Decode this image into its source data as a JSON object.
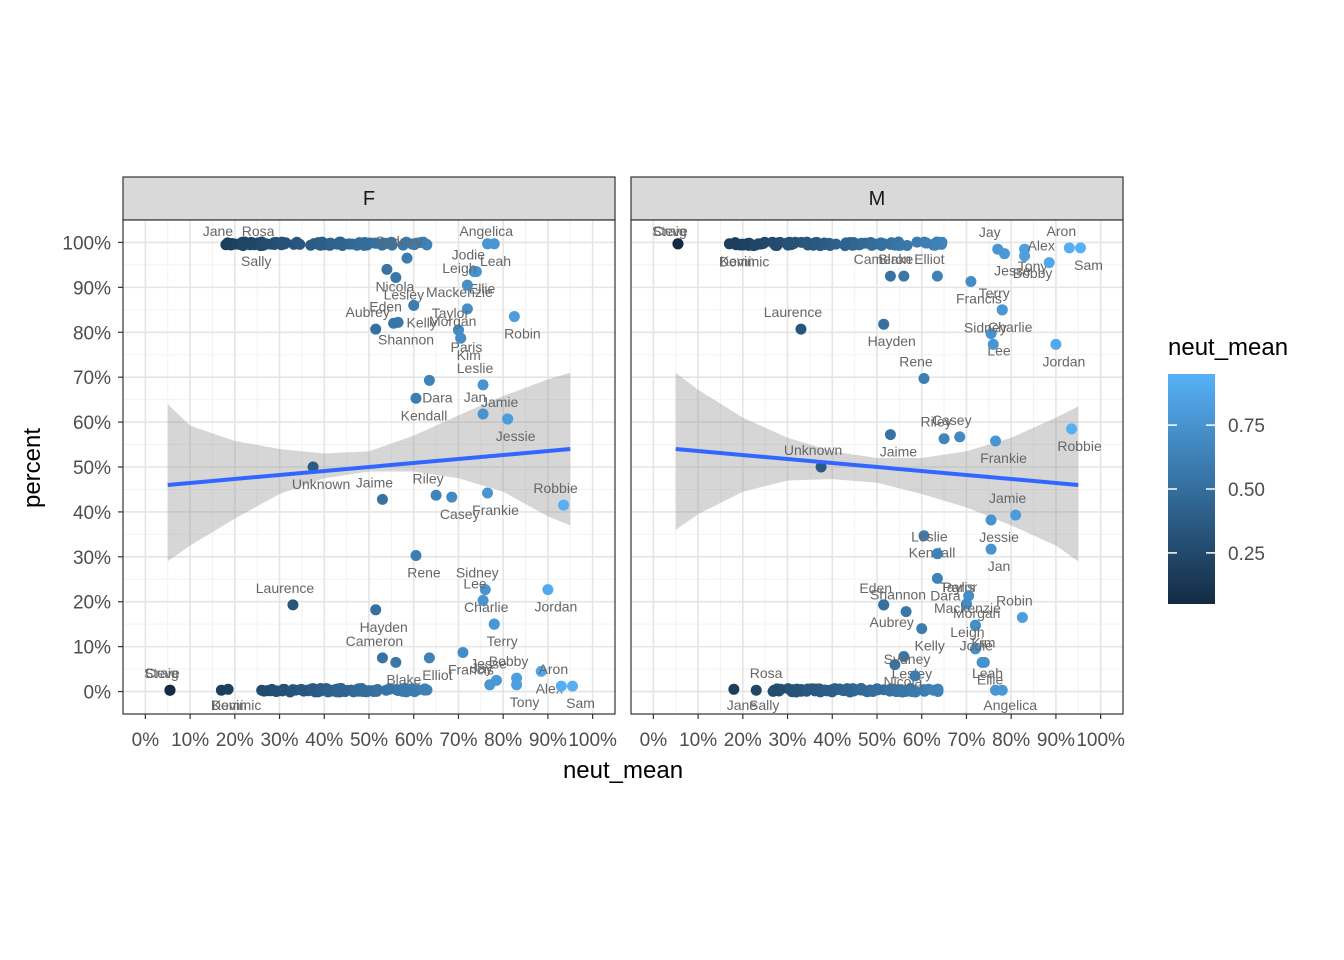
{
  "chart_data": {
    "type": "scatter",
    "xlabel": "neut_mean",
    "ylabel": "percent",
    "xlim": [
      0,
      1
    ],
    "ylim": [
      0,
      1
    ],
    "x_ticks": [
      "0%",
      "10%",
      "20%",
      "30%",
      "40%",
      "50%",
      "60%",
      "70%",
      "80%",
      "90%",
      "100%"
    ],
    "y_ticks": [
      "0%",
      "10%",
      "20%",
      "30%",
      "40%",
      "50%",
      "60%",
      "70%",
      "80%",
      "90%",
      "100%"
    ],
    "grid": true,
    "trend_line": {
      "method": "linear",
      "color": "#3366ff",
      "confidence_band": true
    },
    "legend": {
      "title": "neut_mean",
      "placement": "right",
      "type": "colorbar",
      "breaks": [
        "0.25",
        "0.50",
        "0.75"
      ],
      "colors": {
        "low": "#132b43",
        "high": "#56b1f7"
      }
    },
    "facets": [
      {
        "label": "F",
        "trend": {
          "y_at_xmin": 0.46,
          "y_at_xmax": 0.54,
          "x_range": [
            0.05,
            0.95
          ]
        },
        "band": [
          [
            0.05,
            0.29,
            0.64
          ],
          [
            0.1,
            0.325,
            0.592
          ],
          [
            0.2,
            0.385,
            0.558
          ],
          [
            0.3,
            0.44,
            0.54
          ],
          [
            0.4,
            0.475,
            0.53
          ],
          [
            0.5,
            0.49,
            0.535
          ],
          [
            0.6,
            0.49,
            0.57
          ],
          [
            0.7,
            0.475,
            0.615
          ],
          [
            0.8,
            0.445,
            0.658
          ],
          [
            0.9,
            0.39,
            0.695
          ],
          [
            0.95,
            0.37,
            0.71
          ]
        ],
        "labeled_points": [
          {
            "name": "Jane",
            "x": 0.18,
            "y": 0.995
          },
          {
            "name": "Sally",
            "x": 0.23,
            "y": 0.997
          },
          {
            "name": "Rosa",
            "x": 0.27,
            "y": 0.997
          },
          {
            "name": "Nicola",
            "x": 0.54,
            "y": 0.94
          },
          {
            "name": "Sydney",
            "x": 0.585,
            "y": 0.965
          },
          {
            "name": "Leah",
            "x": 0.765,
            "y": 0.997
          },
          {
            "name": "Angelica",
            "x": 0.78,
            "y": 0.997
          },
          {
            "name": "Ellie",
            "x": 0.735,
            "y": 0.935
          },
          {
            "name": "Jodie",
            "x": 0.74,
            "y": 0.935
          },
          {
            "name": "Lesley",
            "x": 0.56,
            "y": 0.922
          },
          {
            "name": "Leigh",
            "x": 0.72,
            "y": 0.905
          },
          {
            "name": "Kelly",
            "x": 0.6,
            "y": 0.86
          },
          {
            "name": "Mackenzie",
            "x": 0.72,
            "y": 0.852
          },
          {
            "name": "Robin",
            "x": 0.825,
            "y": 0.835
          },
          {
            "name": "Aubrey",
            "x": 0.515,
            "y": 0.807
          },
          {
            "name": "Shannon",
            "x": 0.565,
            "y": 0.822
          },
          {
            "name": "Eden",
            "x": 0.555,
            "y": 0.82
          },
          {
            "name": "Kim",
            "x": 0.705,
            "y": 0.787
          },
          {
            "name": "Taylor",
            "x": 0.7,
            "y": 0.805
          },
          {
            "name": "Paris",
            "x": 0.7,
            "y": 0.805
          },
          {
            "name": "Morgan",
            "x": 0.705,
            "y": 0.787
          },
          {
            "name": "Dara",
            "x": 0.635,
            "y": 0.693
          },
          {
            "name": "Leslie",
            "x": 0.755,
            "y": 0.683
          },
          {
            "name": "Kendall",
            "x": 0.605,
            "y": 0.653
          },
          {
            "name": "Jan",
            "x": 0.755,
            "y": 0.618
          },
          {
            "name": "Jessie",
            "x": 0.81,
            "y": 0.607
          },
          {
            "name": "Jamie",
            "x": 0.81,
            "y": 0.607
          },
          {
            "name": "Unknown",
            "x": 0.375,
            "y": 0.5
          },
          {
            "name": "Riley",
            "x": 0.65,
            "y": 0.437
          },
          {
            "name": "Frankie",
            "x": 0.765,
            "y": 0.442
          },
          {
            "name": "Jaime",
            "x": 0.53,
            "y": 0.428
          },
          {
            "name": "Casey",
            "x": 0.685,
            "y": 0.433
          },
          {
            "name": "Robbie",
            "x": 0.935,
            "y": 0.415
          },
          {
            "name": "Rene",
            "x": 0.605,
            "y": 0.303
          },
          {
            "name": "Laurence",
            "x": 0.33,
            "y": 0.193
          },
          {
            "name": "Hayden",
            "x": 0.515,
            "y": 0.182
          },
          {
            "name": "Sidney",
            "x": 0.76,
            "y": 0.227
          },
          {
            "name": "Jordan",
            "x": 0.9,
            "y": 0.227
          },
          {
            "name": "Lee",
            "x": 0.755,
            "y": 0.203
          },
          {
            "name": "Terry",
            "x": 0.78,
            "y": 0.15
          },
          {
            "name": "Charlie",
            "x": 0.78,
            "y": 0.15
          },
          {
            "name": "Francis",
            "x": 0.71,
            "y": 0.087
          },
          {
            "name": "Bobby",
            "x": 0.83,
            "y": 0.03
          },
          {
            "name": "Blake",
            "x": 0.56,
            "y": 0.065
          },
          {
            "name": "Cameron",
            "x": 0.53,
            "y": 0.075
          },
          {
            "name": "Elliot",
            "x": 0.635,
            "y": 0.075
          },
          {
            "name": "Jesse",
            "x": 0.785,
            "y": 0.025
          },
          {
            "name": "Alex",
            "x": 0.885,
            "y": 0.045
          },
          {
            "name": "Craig",
            "x": 0.055,
            "y": 0.003
          },
          {
            "name": "Dominic",
            "x": 0.185,
            "y": 0.005
          },
          {
            "name": "Steve",
            "x": 0.055,
            "y": 0.003
          },
          {
            "name": "Kevin",
            "x": 0.17,
            "y": 0.003
          },
          {
            "name": "Jay",
            "x": 0.77,
            "y": 0.015
          },
          {
            "name": "Tony",
            "x": 0.83,
            "y": 0.015
          },
          {
            "name": "Aron",
            "x": 0.93,
            "y": 0.012
          },
          {
            "name": "Sam",
            "x": 0.955,
            "y": 0.012
          }
        ]
      },
      {
        "label": "M",
        "trend": {
          "y_at_xmin": 0.54,
          "y_at_xmax": 0.46,
          "x_range": [
            0.05,
            0.95
          ]
        },
        "band": [
          [
            0.05,
            0.36,
            0.71
          ],
          [
            0.1,
            0.395,
            0.672
          ],
          [
            0.2,
            0.445,
            0.61
          ],
          [
            0.3,
            0.47,
            0.565
          ],
          [
            0.4,
            0.473,
            0.535
          ],
          [
            0.5,
            0.465,
            0.52
          ],
          [
            0.6,
            0.44,
            0.52
          ],
          [
            0.7,
            0.41,
            0.535
          ],
          [
            0.8,
            0.37,
            0.565
          ],
          [
            0.9,
            0.325,
            0.61
          ],
          [
            0.95,
            0.29,
            0.635
          ]
        ],
        "labeled_points": [
          {
            "name": "Steve",
            "x": 0.055,
            "y": 0.997
          },
          {
            "name": "Kevin",
            "x": 0.17,
            "y": 0.997
          },
          {
            "name": "Craig",
            "x": 0.055,
            "y": 0.997
          },
          {
            "name": "Dominic",
            "x": 0.185,
            "y": 0.995
          },
          {
            "name": "Jay",
            "x": 0.77,
            "y": 0.985
          },
          {
            "name": "Tony",
            "x": 0.83,
            "y": 0.985
          },
          {
            "name": "Aron",
            "x": 0.93,
            "y": 0.988
          },
          {
            "name": "Sam",
            "x": 0.955,
            "y": 0.988
          },
          {
            "name": "Alex",
            "x": 0.885,
            "y": 0.955
          },
          {
            "name": "Bobby",
            "x": 0.83,
            "y": 0.97
          },
          {
            "name": "Elliot",
            "x": 0.635,
            "y": 0.925
          },
          {
            "name": "Jesse",
            "x": 0.785,
            "y": 0.975
          },
          {
            "name": "Blake",
            "x": 0.56,
            "y": 0.925
          },
          {
            "name": "Francis",
            "x": 0.71,
            "y": 0.913
          },
          {
            "name": "Cameron",
            "x": 0.53,
            "y": 0.925
          },
          {
            "name": "Charlie",
            "x": 0.78,
            "y": 0.85
          },
          {
            "name": "Terry",
            "x": 0.78,
            "y": 0.85
          },
          {
            "name": "Lee",
            "x": 0.755,
            "y": 0.797
          },
          {
            "name": "Laurence",
            "x": 0.33,
            "y": 0.807
          },
          {
            "name": "Hayden",
            "x": 0.515,
            "y": 0.818
          },
          {
            "name": "Sidney",
            "x": 0.76,
            "y": 0.773
          },
          {
            "name": "Jordan",
            "x": 0.9,
            "y": 0.773
          },
          {
            "name": "Rene",
            "x": 0.605,
            "y": 0.697
          },
          {
            "name": "Jaime",
            "x": 0.53,
            "y": 0.572
          },
          {
            "name": "Casey",
            "x": 0.685,
            "y": 0.567
          },
          {
            "name": "Robbie",
            "x": 0.935,
            "y": 0.585
          },
          {
            "name": "Riley",
            "x": 0.65,
            "y": 0.563
          },
          {
            "name": "Frankie",
            "x": 0.765,
            "y": 0.558
          },
          {
            "name": "Unknown",
            "x": 0.375,
            "y": 0.5
          },
          {
            "name": "Jessie",
            "x": 0.755,
            "y": 0.382
          },
          {
            "name": "Jamie",
            "x": 0.81,
            "y": 0.393
          },
          {
            "name": "Kendall",
            "x": 0.605,
            "y": 0.347
          },
          {
            "name": "Leslie",
            "x": 0.635,
            "y": 0.307
          },
          {
            "name": "Jan",
            "x": 0.755,
            "y": 0.317
          },
          {
            "name": "Paris",
            "x": 0.7,
            "y": 0.195
          },
          {
            "name": "Dara",
            "x": 0.635,
            "y": 0.252
          },
          {
            "name": "Taylor",
            "x": 0.7,
            "y": 0.195
          },
          {
            "name": "Morgan",
            "x": 0.705,
            "y": 0.213
          },
          {
            "name": "Eden",
            "x": 0.515,
            "y": 0.193
          },
          {
            "name": "Aubrey",
            "x": 0.515,
            "y": 0.193
          },
          {
            "name": "Shannon",
            "x": 0.565,
            "y": 0.178
          },
          {
            "name": "Kim",
            "x": 0.72,
            "y": 0.147
          },
          {
            "name": "Robin",
            "x": 0.825,
            "y": 0.165
          },
          {
            "name": "Kelly",
            "x": 0.6,
            "y": 0.14
          },
          {
            "name": "Mackenzie",
            "x": 0.72,
            "y": 0.148
          },
          {
            "name": "Lesley",
            "x": 0.56,
            "y": 0.078
          },
          {
            "name": "Leigh",
            "x": 0.72,
            "y": 0.095
          },
          {
            "name": "Nicola",
            "x": 0.54,
            "y": 0.06
          },
          {
            "name": "Sydney",
            "x": 0.585,
            "y": 0.035
          },
          {
            "name": "Ellie",
            "x": 0.735,
            "y": 0.065
          },
          {
            "name": "Jodie",
            "x": 0.74,
            "y": 0.065
          },
          {
            "name": "Sally",
            "x": 0.23,
            "y": 0.003
          },
          {
            "name": "Rosa",
            "x": 0.27,
            "y": 0.003
          },
          {
            "name": "Jane",
            "x": 0.18,
            "y": 0.005
          },
          {
            "name": "Leah",
            "x": 0.765,
            "y": 0.003
          },
          {
            "name": "Angelica",
            "x": 0.78,
            "y": 0.003
          }
        ]
      }
    ]
  }
}
